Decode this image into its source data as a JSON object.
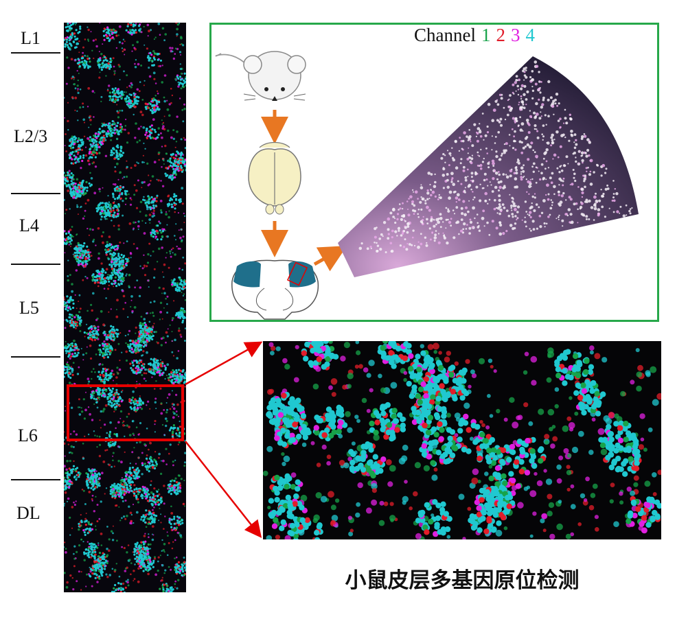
{
  "layers": [
    "L1",
    "L2/3",
    "L4",
    "L5",
    "L6",
    "DL"
  ],
  "legend": {
    "prefix": "Channel",
    "channels": [
      {
        "label": "1",
        "color": "#17a34a"
      },
      {
        "label": "2",
        "color": "#e11d2a"
      },
      {
        "label": "3",
        "color": "#e020e0"
      },
      {
        "label": "4",
        "color": "#20c8d0"
      }
    ]
  },
  "caption": "小鼠皮层多基因原位检测",
  "colors": {
    "panel_border": "#27a84a",
    "zoom_box": "#e60000",
    "arrow": "#e87722",
    "brain_region": "#1f6f8b"
  }
}
